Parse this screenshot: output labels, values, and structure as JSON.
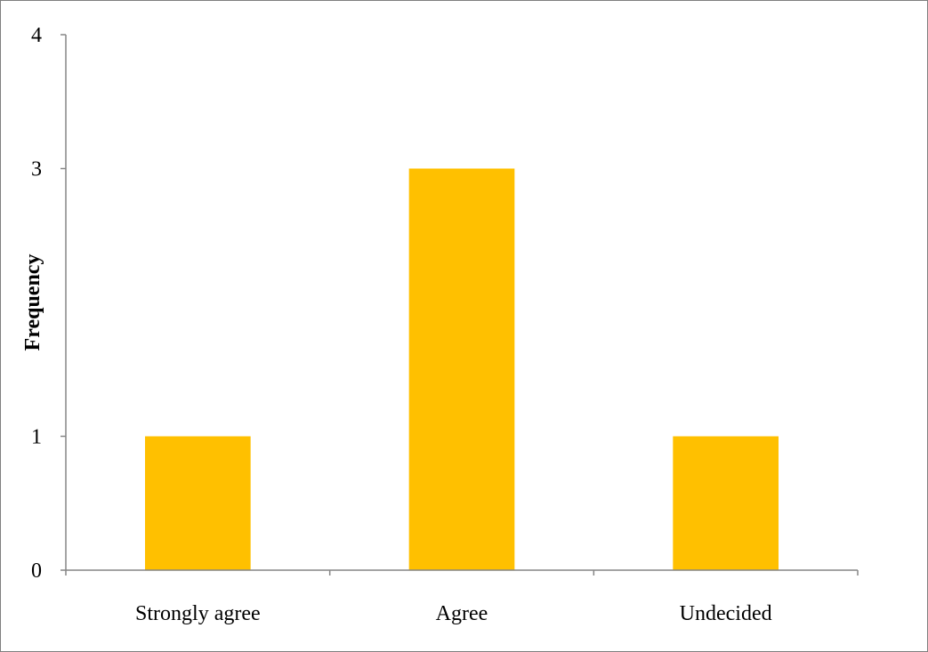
{
  "chart_data": {
    "type": "bar",
    "categories": [
      "Strongly agree",
      "Agree",
      "Undecided"
    ],
    "series": [
      {
        "values": [
          1,
          3,
          1
        ]
      }
    ],
    "ylim": [
      0,
      4
    ],
    "y_ticks": [
      "0",
      "1",
      "3",
      "4"
    ],
    "xlabel": "",
    "ylabel": "Frequency",
    "bar_color": "#FFC000",
    "grid": false,
    "legend": "none"
  }
}
